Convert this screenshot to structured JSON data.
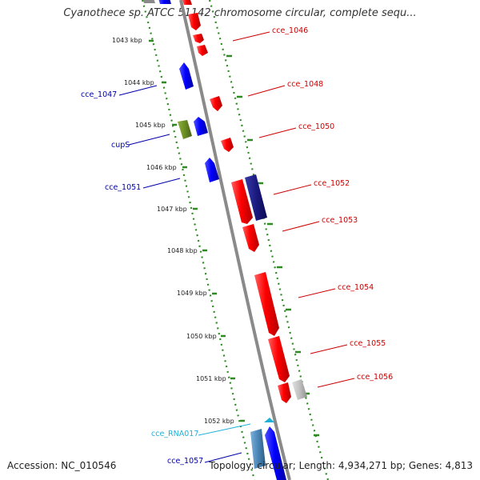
{
  "title": "Cyanothece sp. ATCC 51142 chromosome circular, complete sequ...",
  "footer": {
    "accession": "Accession: NC_010546",
    "stats": "Topology: circular; Length: 4,934,271 bp; Genes: 4,813"
  },
  "colors": {
    "forward_gene": "#ff0000",
    "reverse_gene": "#0000ff",
    "dark_reverse_gene": "#1a1a8c",
    "cup_gene": "#6b8e23",
    "rna_gene": "#4a86b8",
    "pseudo_gene": "#c0c0c0",
    "tick_green": "#2e8b22",
    "forward_label": "#cc0000",
    "reverse_label": "#0000aa",
    "rna_label": "#1fb0d8"
  },
  "kbp_markers": [
    "1043 kbp",
    "1044 kbp",
    "1045 kbp",
    "1046 kbp",
    "1047 kbp",
    "1048 kbp",
    "1049 kbp",
    "1050 kbp",
    "1051 kbp",
    "1052 kbp"
  ],
  "forward_labels": [
    "cce_1046",
    "cce_1048",
    "cce_1050",
    "cce_1052",
    "cce_1053",
    "cce_1054",
    "cce_1055",
    "cce_1056"
  ],
  "reverse_labels": [
    "cce_1047",
    "cupS",
    "cce_1051",
    "cce_RNA017",
    "cce_1057"
  ]
}
